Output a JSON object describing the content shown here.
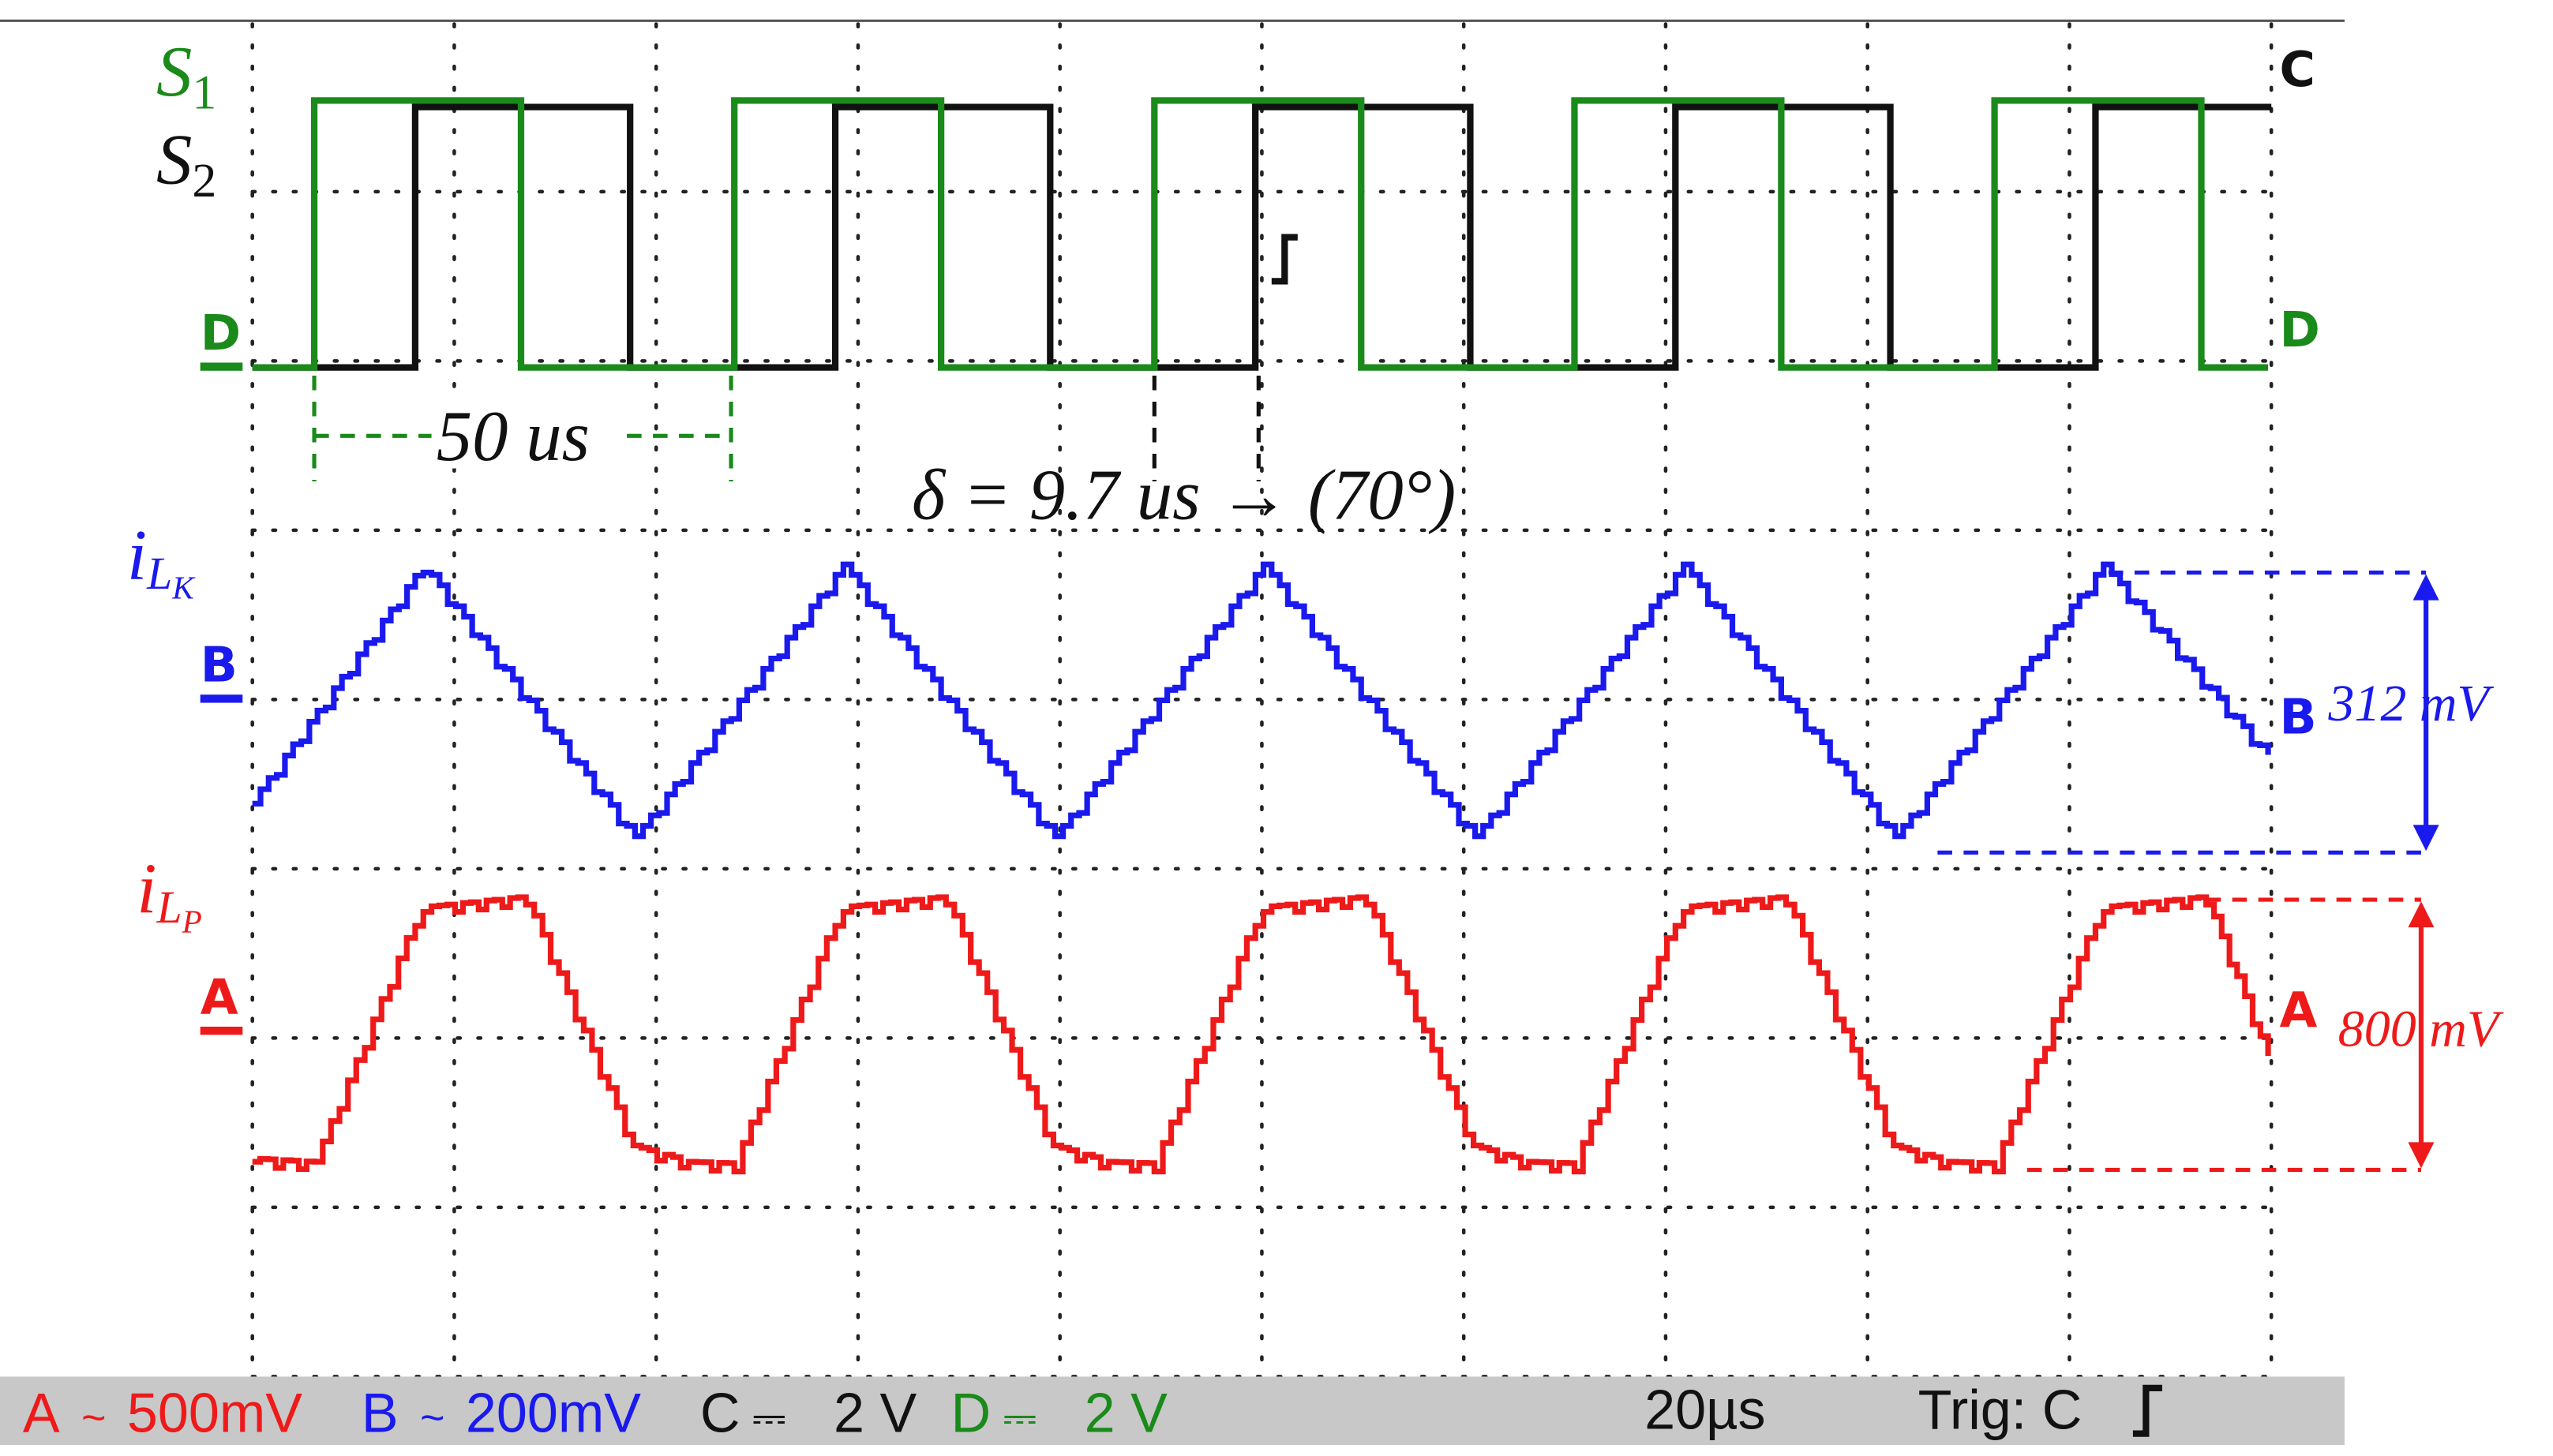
{
  "traces": {
    "s1": {
      "symbol": "S",
      "subscript": "1"
    },
    "s2": {
      "symbol": "S",
      "subscript": "2"
    },
    "ilk": {
      "symbol": "i",
      "subscript": "L",
      "sub_subscript": "K"
    },
    "ilp": {
      "symbol": "i",
      "subscript": "L",
      "sub_subscript": "P"
    }
  },
  "channel_markers": {
    "left": [
      "D",
      "B",
      "A"
    ],
    "right": [
      "C",
      "D",
      "B",
      "A"
    ]
  },
  "annotations": {
    "period": "50 us",
    "delta": "δ = 9.7 us → (70°)",
    "amplitude_b": "312 mV",
    "amplitude_a": "800 mV"
  },
  "status_bar": {
    "channels": [
      {
        "name": "A",
        "coupling": "~",
        "scale": "500mV"
      },
      {
        "name": "B",
        "coupling": "~",
        "scale": "200mV"
      },
      {
        "name": "C",
        "coupling": "⎓",
        "scale": "2 V"
      },
      {
        "name": "D",
        "coupling": "⎓",
        "scale": "2 V"
      }
    ],
    "timebase": "20µs",
    "trigger": "Trig: C"
  }
}
